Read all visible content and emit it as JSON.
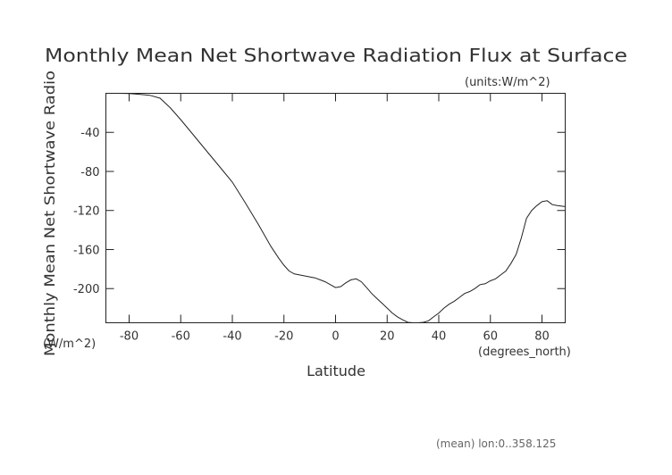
{
  "chart_data": {
    "type": "line",
    "title": "Monthly Mean Net Shortwave Radiation Flux at Surface",
    "units_note": "(units:W/m^2)",
    "xlabel": "Latitude",
    "x_units": "(degrees_north)",
    "ylabel": "Monthly Mean Net Shortwave Radio",
    "y_units": "(W/m^2)",
    "footnote": "(mean) lon:0..358.125",
    "xlim": [
      -89,
      89
    ],
    "ylim": [
      -235,
      0
    ],
    "x_ticks": [
      -80,
      -60,
      -40,
      -20,
      0,
      20,
      40,
      60,
      80
    ],
    "y_ticks": [
      -40,
      -80,
      -120,
      -160,
      -200
    ],
    "x_tick_labels": [
      "-80",
      "-60",
      "-40",
      "-20",
      "0",
      "20",
      "40",
      "60",
      "80"
    ],
    "y_tick_labels": [
      "-40",
      "-80",
      "-120",
      "-160",
      "-200"
    ],
    "grid": false,
    "series": [
      {
        "x": [
          -89,
          -84,
          -80,
          -76,
          -72,
          -68,
          -66,
          -64,
          -62,
          -60,
          -55,
          -50,
          -45,
          -40,
          -35,
          -30,
          -25,
          -22,
          -20,
          -18,
          -16,
          -14,
          -12,
          -10,
          -8,
          -6,
          -4,
          -2,
          0,
          2,
          4,
          6,
          8,
          10,
          12,
          14,
          16,
          18,
          20,
          22,
          24,
          26,
          28,
          30,
          32,
          34,
          36,
          38,
          40,
          42,
          44,
          46,
          48,
          50,
          52,
          54,
          56,
          58,
          60,
          62,
          64,
          66,
          68,
          70,
          72,
          74,
          76,
          78,
          80,
          82,
          84,
          86,
          89
        ],
        "y": [
          0,
          0,
          -0.3,
          -1,
          -2,
          -5,
          -10,
          -15,
          -21,
          -27,
          -43,
          -59,
          -75,
          -91,
          -112,
          -134,
          -157,
          -169,
          -176,
          -182,
          -185,
          -186,
          -187,
          -188,
          -189,
          -191,
          -193,
          -196,
          -199,
          -198,
          -194,
          -191,
          -190,
          -193,
          -199,
          -205,
          -210,
          -215,
          -220,
          -225,
          -229,
          -232,
          -234.5,
          -235,
          -235,
          -234.5,
          -233,
          -229,
          -225,
          -220,
          -216,
          -213,
          -209,
          -205,
          -203,
          -200,
          -196,
          -195,
          -192,
          -190,
          -186,
          -182,
          -174,
          -165,
          -148,
          -128,
          -120,
          -115,
          -111,
          -110,
          -114,
          -115,
          -116
        ]
      }
    ]
  }
}
